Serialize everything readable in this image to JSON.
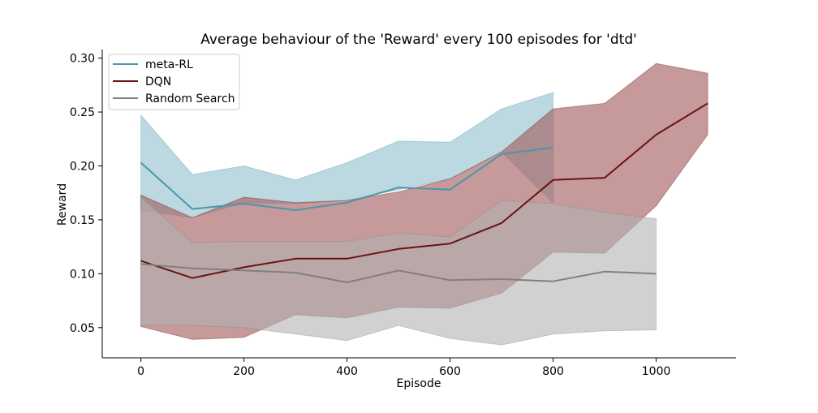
{
  "chart_data": {
    "type": "line",
    "title": "Average behaviour of the 'Reward' every 100 episodes for 'dtd'",
    "xlabel": "Episode",
    "ylabel": "Reward",
    "xlim": [
      -75,
      1155
    ],
    "ylim": [
      0.022,
      0.308
    ],
    "xticks": [
      0,
      200,
      400,
      600,
      800,
      1000
    ],
    "xtick_labels": [
      "0",
      "200",
      "400",
      "600",
      "800",
      "1000"
    ],
    "yticks": [
      0.05,
      0.1,
      0.15,
      0.2,
      0.25,
      0.3
    ],
    "ytick_labels": [
      "0.05",
      "0.10",
      "0.15",
      "0.20",
      "0.25",
      "0.30"
    ],
    "grid": false,
    "legend_position": "top-left",
    "series": [
      {
        "name": "meta-RL",
        "color": "#4a96aa",
        "band_color": "#8fbfcf",
        "x": [
          0,
          100,
          200,
          300,
          400,
          500,
          600,
          700,
          800
        ],
        "mean": [
          0.203,
          0.16,
          0.165,
          0.159,
          0.166,
          0.18,
          0.178,
          0.211,
          0.217
        ],
        "upper": [
          0.247,
          0.192,
          0.2,
          0.187,
          0.203,
          0.223,
          0.222,
          0.253,
          0.268
        ],
        "lower": [
          0.159,
          0.152,
          0.166,
          0.165,
          0.168,
          0.178,
          0.188,
          0.213,
          0.166
        ]
      },
      {
        "name": "DQN",
        "color": "#6b1212",
        "band_color": "#a05656",
        "x": [
          0,
          100,
          200,
          300,
          400,
          500,
          600,
          700,
          800,
          900,
          1000,
          1100
        ],
        "mean": [
          0.112,
          0.096,
          0.106,
          0.114,
          0.114,
          0.123,
          0.128,
          0.147,
          0.187,
          0.189,
          0.229,
          0.258
        ],
        "upper": [
          0.173,
          0.152,
          0.171,
          0.166,
          0.168,
          0.176,
          0.188,
          0.213,
          0.253,
          0.258,
          0.295,
          0.286
        ],
        "lower": [
          0.051,
          0.039,
          0.041,
          0.062,
          0.059,
          0.069,
          0.068,
          0.082,
          0.12,
          0.119,
          0.163,
          0.229
        ]
      },
      {
        "name": "Random Search",
        "color": "#808080",
        "band_color": "#b3b3b3",
        "x": [
          0,
          100,
          200,
          300,
          400,
          500,
          600,
          700,
          800,
          900,
          1000
        ],
        "mean": [
          0.109,
          0.105,
          0.103,
          0.101,
          0.092,
          0.103,
          0.094,
          0.095,
          0.093,
          0.102,
          0.1
        ],
        "upper": [
          0.171,
          0.129,
          0.13,
          0.13,
          0.13,
          0.138,
          0.134,
          0.168,
          0.165,
          0.157,
          0.151
        ],
        "lower": [
          0.052,
          0.052,
          0.05,
          0.044,
          0.038,
          0.052,
          0.04,
          0.034,
          0.044,
          0.047,
          0.048
        ]
      }
    ]
  }
}
